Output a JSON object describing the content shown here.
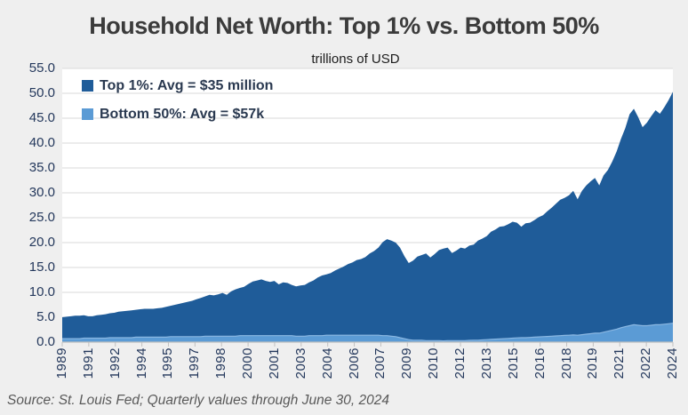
{
  "page": {
    "title": "Household Net Worth: Top 1% vs. Bottom 50%",
    "subtitle": "trillions of USD",
    "source": "Source: St. Louis Fed; Quarterly values through June 30, 2024"
  },
  "legend": [
    {
      "label": "Top 1%: Avg = $35 million",
      "color": "#1f5c99"
    },
    {
      "label": "Bottom 50%: Avg = $57k",
      "color": "#5b9bd5"
    }
  ],
  "colors": {
    "page_background": "#efefef",
    "plot_background": "#ffffff",
    "gridline": "#d9d9d9",
    "axis_line": "#c0c0c0",
    "axis_text": "#24385c",
    "title_text": "#3b3b3b",
    "source_text": "#595959",
    "top1_fill": "#1f5c99",
    "bottom50_fill": "#5b9bd5",
    "bottom50_edge": "#8ab7e2"
  },
  "chart_data": {
    "type": "area",
    "title": "Household Net Worth: Top 1% vs. Bottom 50%",
    "units_label": "trillions of USD",
    "frequency": "quarterly",
    "x_start": "1989 Q1",
    "x_end": "2024 Q2",
    "ylim": [
      0,
      55
    ],
    "y_tick_step": 5,
    "y_tick_labels_top_to_bottom": [
      "55.0",
      "50.0",
      "45.0",
      "40.0",
      "35.0",
      "30.0",
      "25.0",
      "20.0",
      "15.0",
      "10.0",
      "5.0",
      "0.0"
    ],
    "x_tick_labels": [
      "1989",
      "1991",
      "1992",
      "1994",
      "1995",
      "1997",
      "1998",
      "2000",
      "2001",
      "2003",
      "2004",
      "2006",
      "2007",
      "2009",
      "2010",
      "2012",
      "2013",
      "2015",
      "2016",
      "2018",
      "2019",
      "2021",
      "2022",
      "2024"
    ],
    "grid": "horizontal",
    "legend_position": "top-left",
    "series": [
      {
        "name": "Top 1%",
        "legend": "Top 1%: Avg = $35 million",
        "color": "#1f5c99",
        "values": [
          5.0,
          5.1,
          5.2,
          5.3,
          5.3,
          5.4,
          5.2,
          5.2,
          5.4,
          5.5,
          5.6,
          5.8,
          5.9,
          6.1,
          6.2,
          6.3,
          6.4,
          6.5,
          6.6,
          6.7,
          6.7,
          6.7,
          6.8,
          6.9,
          7.1,
          7.3,
          7.5,
          7.7,
          7.9,
          8.1,
          8.3,
          8.6,
          8.9,
          9.2,
          9.5,
          9.4,
          9.6,
          9.9,
          9.5,
          10.2,
          10.6,
          10.9,
          11.1,
          11.7,
          12.2,
          12.4,
          12.6,
          12.3,
          12.1,
          12.3,
          11.6,
          12.0,
          11.9,
          11.5,
          11.2,
          11.4,
          11.5,
          12.0,
          12.4,
          13.0,
          13.4,
          13.6,
          13.9,
          14.4,
          14.8,
          15.2,
          15.7,
          16.0,
          16.5,
          16.7,
          17.1,
          17.8,
          18.3,
          19.0,
          20.1,
          20.7,
          20.4,
          20.0,
          19.0,
          17.3,
          15.9,
          16.4,
          17.2,
          17.5,
          17.8,
          17.0,
          17.7,
          18.5,
          18.8,
          19.0,
          17.9,
          18.4,
          19.0,
          18.8,
          19.4,
          19.6,
          20.4,
          20.8,
          21.3,
          22.2,
          22.6,
          23.2,
          23.3,
          23.7,
          24.2,
          24.0,
          23.2,
          23.9,
          24.0,
          24.5,
          25.1,
          25.5,
          26.3,
          27.0,
          27.8,
          28.6,
          29.0,
          29.5,
          30.4,
          28.7,
          30.4,
          31.5,
          32.3,
          33.0,
          31.5,
          33.5,
          34.6,
          36.3,
          38.3,
          40.8,
          43.0,
          45.8,
          46.9,
          45.2,
          43.2,
          44.1,
          45.4,
          46.6,
          45.9,
          47.2,
          48.6,
          50.3
        ]
      },
      {
        "name": "Bottom 50%",
        "legend": "Bottom 50%: Avg = $57k",
        "color": "#5b9bd5",
        "values": [
          0.7,
          0.7,
          0.7,
          0.7,
          0.7,
          0.8,
          0.8,
          0.8,
          0.8,
          0.8,
          0.8,
          0.9,
          0.9,
          0.9,
          0.9,
          0.9,
          0.9,
          1.0,
          1.0,
          1.0,
          1.0,
          1.0,
          1.0,
          1.0,
          1.0,
          1.1,
          1.1,
          1.1,
          1.1,
          1.1,
          1.1,
          1.1,
          1.1,
          1.2,
          1.2,
          1.2,
          1.2,
          1.2,
          1.2,
          1.2,
          1.2,
          1.3,
          1.3,
          1.3,
          1.3,
          1.3,
          1.3,
          1.3,
          1.3,
          1.3,
          1.3,
          1.3,
          1.3,
          1.3,
          1.2,
          1.2,
          1.2,
          1.3,
          1.3,
          1.3,
          1.3,
          1.4,
          1.4,
          1.4,
          1.4,
          1.4,
          1.4,
          1.4,
          1.4,
          1.4,
          1.4,
          1.4,
          1.4,
          1.4,
          1.3,
          1.3,
          1.2,
          1.1,
          0.9,
          0.7,
          0.5,
          0.4,
          0.4,
          0.4,
          0.3,
          0.3,
          0.3,
          0.3,
          0.25,
          0.3,
          0.3,
          0.3,
          0.3,
          0.3,
          0.35,
          0.4,
          0.4,
          0.45,
          0.5,
          0.55,
          0.6,
          0.65,
          0.7,
          0.75,
          0.8,
          0.85,
          0.9,
          0.9,
          0.95,
          1.0,
          1.05,
          1.1,
          1.15,
          1.2,
          1.25,
          1.3,
          1.35,
          1.4,
          1.45,
          1.4,
          1.5,
          1.6,
          1.7,
          1.8,
          1.8,
          2.0,
          2.2,
          2.4,
          2.6,
          2.9,
          3.1,
          3.3,
          3.5,
          3.4,
          3.3,
          3.3,
          3.4,
          3.5,
          3.5,
          3.6,
          3.7,
          3.8
        ]
      }
    ]
  }
}
